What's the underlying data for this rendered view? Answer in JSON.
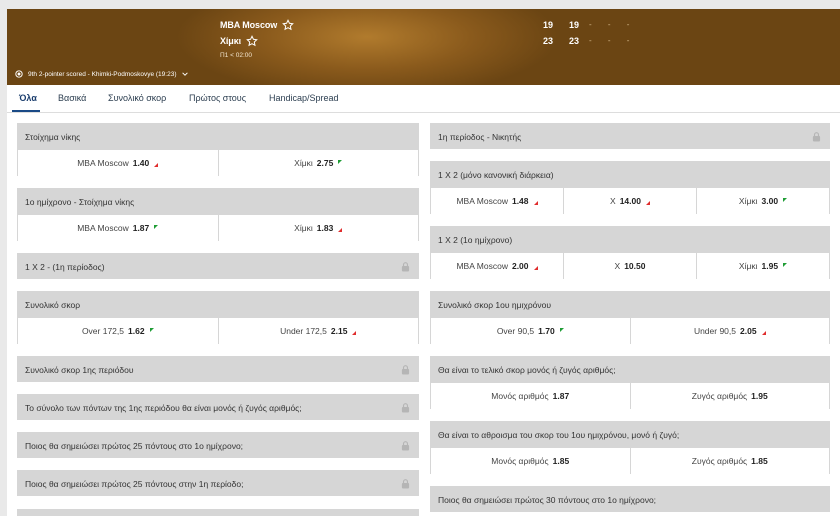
{
  "header": {
    "team1": "MBA Moscow",
    "team2": "Χίμκι",
    "clock": "Π1 < 02:00",
    "score1": "19",
    "score2": "23",
    "q1_team1": "19",
    "q1_team2": "23",
    "dashes": "- - -",
    "event": "9th 2-pointer scored - Khimki-Podmoskovye (19:23)"
  },
  "tabs": [
    "Όλα",
    "Βασικά",
    "Συνολικό σκορ",
    "Πρώτος στους",
    "Handicap/Spread"
  ],
  "left": [
    {
      "title": "Στοίχημα νίκης",
      "locked": false,
      "odds": [
        {
          "label": "MBA Moscow",
          "price": "1.40",
          "trend": "down"
        },
        {
          "label": "Χίμκι",
          "price": "2.75",
          "trend": "up"
        }
      ]
    },
    {
      "title": "1ο ημίχρονο - Στοίχημα νίκης",
      "locked": false,
      "odds": [
        {
          "label": "MBA Moscow",
          "price": "1.87",
          "trend": "up"
        },
        {
          "label": "Χίμκι",
          "price": "1.83",
          "trend": "down"
        }
      ]
    },
    {
      "title": "1 X 2 - (1η περίοδος)",
      "locked": true,
      "odds": []
    },
    {
      "title": "Συνολικό σκορ",
      "locked": false,
      "odds": [
        {
          "label": "Over 172,5",
          "price": "1.62",
          "trend": "up"
        },
        {
          "label": "Under 172,5",
          "price": "2.15",
          "trend": "down"
        }
      ]
    },
    {
      "title": "Συνολικό σκορ 1ης περιόδου",
      "locked": true,
      "odds": []
    },
    {
      "title": "Το σύνολο των πόντων της 1ης περιόδου θα είναι μονός ή ζυγός αριθμός;",
      "locked": true,
      "odds": []
    },
    {
      "title": "Ποιος θα σημειώσει πρώτος 25 πόντους στο 1ο ημίχρονο;",
      "locked": true,
      "odds": []
    },
    {
      "title": "Ποιος θα σημειώσει πρώτος 25 πόντους στην 1η περίοδο;",
      "locked": true,
      "odds": []
    }
  ],
  "right": [
    {
      "title": "1η περίοδος - Νικητής",
      "locked": true,
      "odds": []
    },
    {
      "title": "1 X 2 (μόνο κανονική διάρκεια)",
      "locked": false,
      "odds": [
        {
          "label": "MBA Moscow",
          "price": "1.48",
          "trend": "down"
        },
        {
          "label": "X",
          "price": "14.00",
          "trend": "down"
        },
        {
          "label": "Χίμκι",
          "price": "3.00",
          "trend": "up"
        }
      ]
    },
    {
      "title": "1 X 2 (1ο ημίχρονο)",
      "locked": false,
      "odds": [
        {
          "label": "MBA Moscow",
          "price": "2.00",
          "trend": "down"
        },
        {
          "label": "X",
          "price": "10.50",
          "trend": "none"
        },
        {
          "label": "Χίμκι",
          "price": "1.95",
          "trend": "up"
        }
      ]
    },
    {
      "title": "Συνολικό σκορ 1ου ημιχρόνου",
      "locked": false,
      "odds": [
        {
          "label": "Over 90,5",
          "price": "1.70",
          "trend": "up"
        },
        {
          "label": "Under 90,5",
          "price": "2.05",
          "trend": "down"
        }
      ]
    },
    {
      "title": "Θα είναι το τελικό σκορ μονός ή ζυγός αριθμός;",
      "locked": false,
      "odds": [
        {
          "label": "Μονός αριθμός",
          "price": "1.87",
          "trend": "none"
        },
        {
          "label": "Ζυγός αριθμός",
          "price": "1.95",
          "trend": "none"
        }
      ]
    },
    {
      "title": "Θα είναι το αθροισμα του σκορ του 1ου ημιχρόνου, μονό ή ζυγό;",
      "locked": false,
      "odds": [
        {
          "label": "Μονός αριθμός",
          "price": "1.85",
          "trend": "none"
        },
        {
          "label": "Ζυγός αριθμός",
          "price": "1.85",
          "trend": "none"
        }
      ]
    },
    {
      "title": "Ποιος θα σημειώσει πρώτος 30 πόντους στο 1ο ημίχρονο;",
      "locked": false,
      "odds": []
    }
  ]
}
